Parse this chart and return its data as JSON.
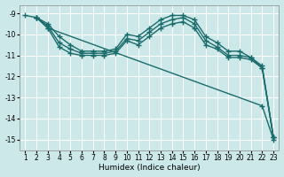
{
  "xlabel": "Humidex (Indice chaleur)",
  "ylabel": "",
  "bg_color": "#cce8e8",
  "grid_color": "#ffffff",
  "line_color": "#1a6b6b",
  "series": [
    {
      "x": [
        1,
        2,
        3,
        22,
        23
      ],
      "y": [
        -9.1,
        -9.2,
        -9.7,
        -13.4,
        -15.0
      ]
    },
    {
      "x": [
        2,
        3,
        4,
        5,
        6,
        7,
        8,
        9,
        10,
        11,
        12,
        13,
        14,
        15,
        16,
        17,
        18,
        19,
        20,
        21,
        22,
        23
      ],
      "y": [
        -9.2,
        -9.5,
        -10.1,
        -10.5,
        -10.8,
        -10.8,
        -10.8,
        -10.7,
        -10.0,
        -10.1,
        -9.7,
        -9.3,
        -9.1,
        -9.1,
        -9.3,
        -10.1,
        -10.4,
        -10.8,
        -10.8,
        -11.1,
        -11.6,
        -14.9
      ]
    },
    {
      "x": [
        2,
        3,
        4,
        5,
        6,
        7,
        8,
        9,
        10,
        11,
        12,
        13,
        14,
        15,
        16,
        17,
        18,
        19,
        20,
        21,
        22,
        23
      ],
      "y": [
        -9.2,
        -9.6,
        -10.4,
        -10.7,
        -10.9,
        -10.9,
        -10.9,
        -10.8,
        -10.2,
        -10.3,
        -9.9,
        -9.5,
        -9.3,
        -9.2,
        -9.5,
        -10.3,
        -10.6,
        -11.0,
        -11.0,
        -11.1,
        -11.5,
        -14.9
      ]
    },
    {
      "x": [
        2,
        3,
        4,
        5,
        6,
        7,
        8,
        9,
        10,
        11,
        12,
        13,
        14,
        15,
        16,
        17,
        18,
        19,
        20,
        21,
        22,
        23
      ],
      "y": [
        -9.2,
        -9.7,
        -10.6,
        -10.9,
        -11.0,
        -11.0,
        -11.0,
        -10.9,
        -10.3,
        -10.5,
        -10.1,
        -9.7,
        -9.5,
        -9.4,
        -9.7,
        -10.5,
        -10.7,
        -11.1,
        -11.1,
        -11.2,
        -11.6,
        -14.9
      ]
    }
  ],
  "xlim_min": 0.5,
  "xlim_max": 23.5,
  "ylim_min": -15.5,
  "ylim_max": -8.6,
  "xticks": [
    1,
    2,
    3,
    4,
    5,
    6,
    7,
    8,
    9,
    10,
    11,
    12,
    13,
    14,
    15,
    16,
    17,
    18,
    19,
    20,
    21,
    22,
    23
  ],
  "yticks": [
    -15,
    -14,
    -13,
    -12,
    -11,
    -10,
    -9
  ],
  "marker": "+",
  "markersize": 4,
  "markeredgewidth": 1.0,
  "linewidth": 1.0,
  "tick_fontsize": 5.5,
  "xlabel_fontsize": 6.5
}
